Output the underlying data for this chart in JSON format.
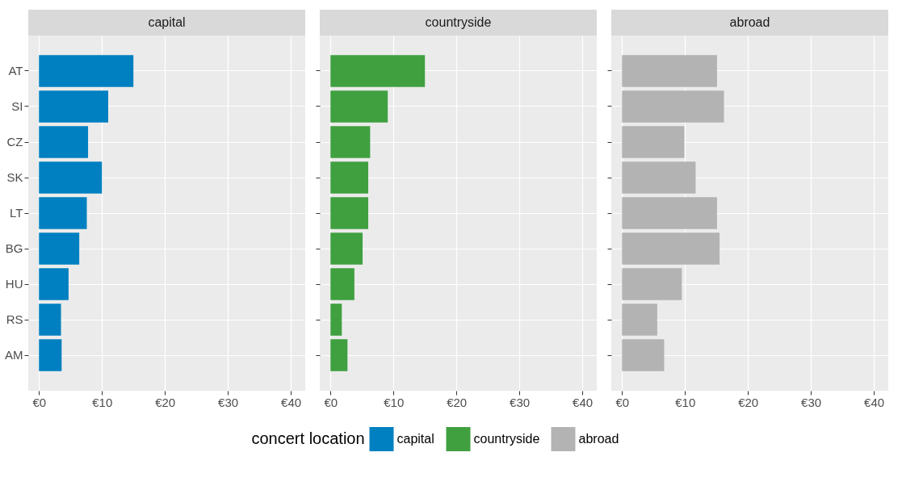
{
  "chart_data": [
    {
      "type": "bar",
      "orientation": "horizontal",
      "title": "capital",
      "categories": [
        "AT",
        "SI",
        "CZ",
        "SK",
        "LT",
        "BG",
        "HU",
        "RS",
        "AM"
      ],
      "series": [
        {
          "name": "capital",
          "color": "#0080c0",
          "values": [
            15.0,
            11.0,
            7.8,
            10.0,
            7.6,
            6.4,
            4.7,
            3.5,
            3.6
          ]
        }
      ],
      "xlim": [
        -1.7,
        42.3
      ],
      "xticks": [
        {
          "value": 0,
          "label": "€0"
        },
        {
          "value": 10,
          "label": "€10"
        },
        {
          "value": 20,
          "label": "€20"
        },
        {
          "value": 30,
          "label": "€30"
        },
        {
          "value": 40,
          "label": "€40"
        }
      ],
      "grid": true,
      "legend": "bottom",
      "legend_title": "concert location"
    },
    {
      "type": "bar",
      "orientation": "horizontal",
      "title": "countryside",
      "categories": [
        null,
        null,
        null,
        null,
        null,
        null,
        null,
        null,
        null
      ],
      "tick_labels": "x",
      "series": [
        {
          "name": "countryside",
          "color": "#40a040",
          "values": [
            15.0,
            9.1,
            6.3,
            6.0,
            6.0,
            5.1,
            3.8,
            1.8,
            2.7
          ]
        }
      ],
      "xlim": [
        -1.7,
        42.3
      ],
      "xticks": [
        {
          "value": 0,
          "label": "€0"
        },
        {
          "value": 10,
          "label": "€10"
        },
        {
          "value": 20,
          "label": "€20"
        },
        {
          "value": 30,
          "label": "€30"
        },
        {
          "value": 40,
          "label": "€40"
        }
      ],
      "grid": true,
      "legend": "bottom"
    },
    {
      "type": "bar",
      "orientation": "horizontal",
      "title": "abroad",
      "categories": [
        null,
        null,
        null,
        null,
        null,
        null,
        null,
        null,
        null
      ],
      "tick_labels": "x",
      "series": [
        {
          "name": "abroad",
          "color": "#b3b3b3",
          "values": [
            15.1,
            16.2,
            9.9,
            11.7,
            15.1,
            15.5,
            9.5,
            5.6,
            6.7
          ]
        }
      ],
      "xlim": [
        -1.7,
        42.3
      ],
      "xticks": [
        {
          "value": 0,
          "label": "€0"
        },
        {
          "value": 10,
          "label": "€10"
        },
        {
          "value": 20,
          "label": "€20"
        },
        {
          "value": 30,
          "label": "€30"
        },
        {
          "value": 40,
          "label": "€40"
        }
      ],
      "grid": true,
      "legend": "bottom"
    }
  ]
}
